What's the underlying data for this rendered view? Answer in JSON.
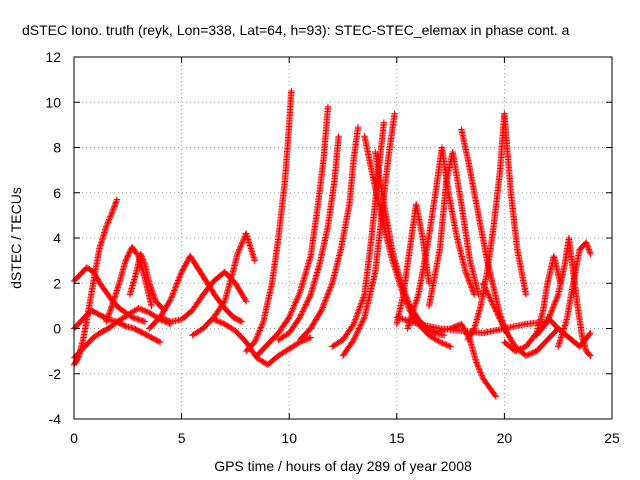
{
  "chart_data": {
    "type": "scatter",
    "title": "dSTEC Iono. truth (reyk, Lon=338, Lat=64, h=93): STEC-STEC_elemax in phase cont. a",
    "xlabel": "GPS time / hours of day 289 of year 2008",
    "ylabel": "dSTEC  / TECUs",
    "xlim": [
      0,
      25
    ],
    "ylim": [
      -4,
      12
    ],
    "xticks": [
      "0",
      "5",
      "10",
      "15",
      "20",
      "25"
    ],
    "yticks": [
      "-4",
      "-2",
      "0",
      "2",
      "4",
      "6",
      "8",
      "10",
      "12"
    ],
    "grid": true,
    "marker": "plus",
    "color": "#ff0000",
    "tracks": [
      {
        "x": [
          0.0,
          0.2,
          0.4,
          0.6,
          0.8,
          1.0,
          1.2,
          1.5,
          1.8,
          2.0
        ],
        "y": [
          -1.6,
          -1.3,
          -0.6,
          0.4,
          1.5,
          2.6,
          3.6,
          4.5,
          5.2,
          5.7
        ]
      },
      {
        "x": [
          0.0,
          0.3,
          0.6,
          0.9,
          1.2,
          1.5,
          1.8,
          2.1,
          2.4,
          2.7,
          3.0,
          3.3
        ],
        "y": [
          2.1,
          2.4,
          2.7,
          2.5,
          2.0,
          1.6,
          1.2,
          0.9,
          0.7,
          0.5,
          0.4,
          0.3
        ]
      },
      {
        "x": [
          0.0,
          0.4,
          0.8,
          1.2,
          1.6,
          2.0,
          2.4,
          2.8,
          3.2,
          3.6,
          4.0
        ],
        "y": [
          0.0,
          0.4,
          0.8,
          0.6,
          0.4,
          0.3,
          0.1,
          0.0,
          -0.2,
          -0.4,
          -0.6
        ]
      },
      {
        "x": [
          0.0,
          0.3,
          0.6,
          0.9,
          1.2,
          1.6,
          2.0,
          2.5,
          3.0,
          3.5,
          4.0,
          4.5
        ],
        "y": [
          -1.3,
          -1.0,
          -0.7,
          -0.4,
          -0.2,
          0.0,
          0.3,
          0.6,
          0.9,
          0.7,
          0.4,
          0.2
        ]
      },
      {
        "x": [
          1.5,
          1.8,
          2.1,
          2.4,
          2.7,
          3.0,
          3.3,
          3.6
        ],
        "y": [
          0.3,
          1.1,
          2.0,
          3.0,
          3.6,
          3.2,
          2.2,
          1.0
        ]
      },
      {
        "x": [
          2.6,
          2.9,
          3.1,
          3.3,
          3.5,
          3.8,
          4.2
        ],
        "y": [
          1.5,
          2.5,
          3.3,
          2.8,
          2.0,
          1.2,
          0.8
        ]
      },
      {
        "x": [
          3.5,
          4.0,
          4.5,
          5.0,
          5.4,
          5.8,
          6.2,
          6.6,
          7.0,
          7.4,
          7.8
        ],
        "y": [
          0.0,
          0.5,
          1.3,
          2.5,
          3.2,
          2.6,
          2.0,
          1.4,
          0.9,
          0.5,
          0.3
        ]
      },
      {
        "x": [
          4.0,
          4.5,
          5.0,
          5.5,
          6.0,
          6.5,
          7.0,
          7.5,
          8.0
        ],
        "y": [
          0.5,
          0.3,
          0.4,
          0.8,
          1.5,
          2.1,
          2.5,
          2.0,
          1.2
        ]
      },
      {
        "x": [
          5.5,
          6.0,
          6.5,
          7.0,
          7.3,
          7.6,
          8.0,
          8.4
        ],
        "y": [
          -0.3,
          0.0,
          0.5,
          1.2,
          2.2,
          3.3,
          4.2,
          3.0
        ]
      },
      {
        "x": [
          6.5,
          7.0,
          7.5,
          8.0,
          8.5,
          9.0,
          9.5,
          10.0,
          10.5,
          11.0
        ],
        "y": [
          0.4,
          0.2,
          -0.1,
          -0.6,
          -1.3,
          -1.6,
          -1.2,
          -0.9,
          -0.6,
          -0.4
        ]
      },
      {
        "x": [
          8.0,
          8.4,
          8.8,
          9.2,
          9.5,
          9.8,
          10.0,
          10.1
        ],
        "y": [
          -1.0,
          -0.6,
          0.3,
          2.0,
          4.0,
          6.5,
          9.0,
          10.5
        ]
      },
      {
        "x": [
          8.5,
          9.0,
          9.5,
          10.0,
          10.5,
          11.0,
          11.3,
          11.6,
          11.8
        ],
        "y": [
          -1.2,
          -0.7,
          -0.2,
          0.5,
          1.6,
          3.2,
          5.2,
          7.5,
          9.8
        ]
      },
      {
        "x": [
          9.5,
          10.0,
          10.5,
          11.0,
          11.4,
          11.8,
          12.1,
          12.3
        ],
        "y": [
          -0.5,
          -0.2,
          0.5,
          1.5,
          2.8,
          4.5,
          6.5,
          8.5
        ]
      },
      {
        "x": [
          10.5,
          11.0,
          11.5,
          12.0,
          12.4,
          12.8,
          13.0,
          13.2
        ],
        "y": [
          -0.5,
          0.0,
          0.8,
          2.0,
          3.5,
          5.5,
          7.5,
          8.9
        ]
      },
      {
        "x": [
          12.0,
          12.5,
          13.0,
          13.5,
          13.8,
          14.1,
          14.4
        ],
        "y": [
          -0.8,
          -0.5,
          0.2,
          1.5,
          3.8,
          6.5,
          9.1
        ]
      },
      {
        "x": [
          12.5,
          13.0,
          13.5,
          14.0,
          14.3,
          14.6,
          14.9
        ],
        "y": [
          -1.2,
          -0.5,
          0.5,
          2.5,
          5.0,
          7.5,
          9.5
        ]
      },
      {
        "x": [
          13.5,
          14.0,
          14.4,
          14.8,
          15.2,
          15.6,
          16.0,
          16.5,
          17.0,
          17.5
        ],
        "y": [
          8.5,
          6.2,
          4.5,
          3.0,
          1.8,
          0.8,
          0.2,
          -0.3,
          -0.6,
          -0.8
        ]
      },
      {
        "x": [
          14.0,
          14.4,
          14.8,
          15.2,
          15.6,
          16.0,
          16.4,
          16.8,
          17.2
        ],
        "y": [
          7.8,
          5.5,
          3.4,
          2.0,
          1.0,
          0.4,
          0.0,
          -0.2,
          -0.3
        ]
      },
      {
        "x": [
          15.0,
          15.3,
          15.6,
          15.9,
          16.2,
          16.5
        ],
        "y": [
          0.2,
          1.5,
          3.5,
          5.5,
          4.0,
          2.0
        ]
      },
      {
        "x": [
          15.5,
          16.0,
          16.4,
          16.8,
          17.1,
          17.4,
          17.8,
          18.2,
          18.6
        ],
        "y": [
          0.0,
          1.5,
          3.5,
          6.0,
          8.0,
          6.0,
          4.0,
          2.5,
          1.5
        ]
      },
      {
        "x": [
          16.5,
          17.0,
          17.3,
          17.6,
          18.0,
          18.4,
          18.8
        ],
        "y": [
          1.0,
          3.5,
          6.5,
          7.8,
          5.5,
          3.0,
          1.5
        ]
      },
      {
        "x": [
          15.0,
          16.0,
          17.0,
          18.0,
          19.0,
          20.0,
          21.0,
          22.0
        ],
        "y": [
          0.5,
          0.2,
          0.0,
          -0.1,
          -0.2,
          0.0,
          0.2,
          0.3
        ]
      },
      {
        "x": [
          16.5,
          17.0,
          17.5,
          18.0,
          18.4,
          18.7,
          19.0,
          19.3,
          19.6
        ],
        "y": [
          -0.2,
          -0.1,
          0.0,
          0.2,
          -0.5,
          -1.5,
          -2.2,
          -2.6,
          -3.0
        ]
      },
      {
        "x": [
          18.0,
          18.3,
          18.6,
          18.9,
          19.2,
          19.5,
          19.8,
          20.1
        ],
        "y": [
          8.8,
          7.5,
          6.0,
          4.5,
          3.0,
          1.8,
          0.6,
          -0.2
        ]
      },
      {
        "x": [
          18.3,
          18.6,
          18.9,
          19.2,
          19.5,
          19.8,
          20.0,
          20.3,
          20.6,
          21.0
        ],
        "y": [
          -0.5,
          0.0,
          1.0,
          2.5,
          4.5,
          7.0,
          9.5,
          6.0,
          3.5,
          1.5
        ]
      },
      {
        "x": [
          19.0,
          19.5,
          20.0,
          20.5,
          21.0,
          21.5,
          22.0,
          22.5
        ],
        "y": [
          2.0,
          1.0,
          0.0,
          -0.8,
          -1.2,
          -1.0,
          -0.5,
          0.0
        ]
      },
      {
        "x": [
          20.0,
          20.5,
          21.0,
          21.5,
          21.8,
          22.0,
          22.3,
          22.6
        ],
        "y": [
          -0.6,
          -1.0,
          -0.8,
          -0.2,
          0.8,
          2.0,
          3.2,
          2.0
        ]
      },
      {
        "x": [
          21.5,
          22.0,
          22.5,
          22.8,
          23.0,
          23.2,
          23.4,
          23.6,
          23.8,
          24.0
        ],
        "y": [
          -0.3,
          0.3,
          1.5,
          2.8,
          4.0,
          2.5,
          1.0,
          -0.3,
          -1.0,
          -1.2
        ]
      },
      {
        "x": [
          22.5,
          22.9,
          23.2,
          23.5,
          23.8,
          24.0
        ],
        "y": [
          -0.8,
          0.4,
          2.0,
          3.5,
          3.8,
          3.3
        ]
      },
      {
        "x": [
          22.0,
          22.5,
          23.0,
          23.5,
          24.0
        ],
        "y": [
          0.5,
          0.0,
          -0.4,
          -0.8,
          -0.2
        ]
      }
    ]
  }
}
